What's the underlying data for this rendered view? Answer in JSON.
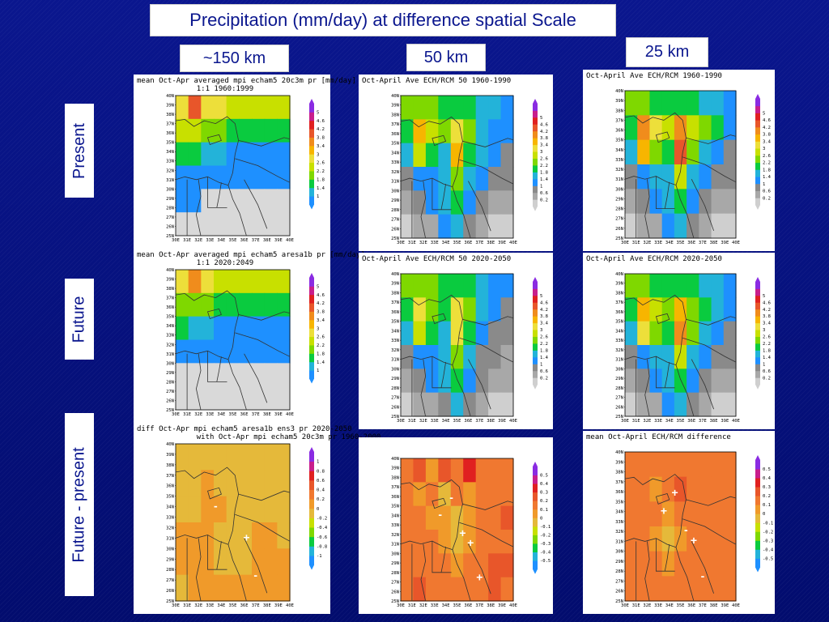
{
  "slide": {
    "title": "Precipitation (mm/day) at difference spatial Scale",
    "columns": [
      "~150 km",
      "50 km",
      "25 km"
    ],
    "rows": [
      "Present",
      "Future",
      "Future - present"
    ]
  },
  "colors": {
    "background": "#0a168e",
    "label_text": "#0a168e"
  },
  "colorbars": {
    "precip_gcm": {
      "ticks": [
        "1",
        "1.4",
        "1.8",
        "2.2",
        "2.6",
        "3",
        "3.4",
        "3.8",
        "4.2",
        "4.6",
        "5"
      ],
      "colors": [
        "#1e90ff",
        "#23b3d9",
        "#0acb3f",
        "#7fd800",
        "#c8e000",
        "#eddf3a",
        "#f7b500",
        "#f08c1c",
        "#e8562a",
        "#e02020",
        "#c81e8c",
        "#8a2be2"
      ]
    },
    "precip_rcm": {
      "ticks": [
        "0.2",
        "0.6",
        "1",
        "1.4",
        "1.8",
        "2.2",
        "2.6",
        "3",
        "3.4",
        "3.8",
        "4.2",
        "4.6",
        "5"
      ],
      "colors": [
        "#cfcfcf",
        "#a8a8a8",
        "#8a8a8a",
        "#1e90ff",
        "#23b3d9",
        "#0acb3f",
        "#7fd800",
        "#c8e000",
        "#eddf3a",
        "#f7b500",
        "#f08c1c",
        "#e8562a",
        "#e02020",
        "#c81e8c",
        "#8a2be2"
      ]
    },
    "diff_gcm": {
      "ticks": [
        "-1",
        "-0.8",
        "-0.6",
        "-0.4",
        "-0.2",
        "0",
        "0.2",
        "0.4",
        "0.6",
        "0.8",
        "1"
      ],
      "colors": [
        "#1e90ff",
        "#23b3d9",
        "#0acb3f",
        "#7fd800",
        "#c8e000",
        "#e5b93a",
        "#f09a2a",
        "#f07830",
        "#e8562a",
        "#e02020",
        "#c81e8c",
        "#8a2be2"
      ]
    },
    "diff_rcm": {
      "ticks": [
        "-0.5",
        "-0.4",
        "-0.3",
        "-0.2",
        "-0.1",
        "0",
        "0.1",
        "0.2",
        "0.3",
        "0.4",
        "0.5"
      ],
      "colors": [
        "#1e90ff",
        "#23b3d9",
        "#0acb3f",
        "#7fd800",
        "#c8e000",
        "#e5b93a",
        "#f09a2a",
        "#f07830",
        "#e8562a",
        "#e02020",
        "#c81e8c",
        "#8a2be2"
      ]
    }
  },
  "axes": {
    "lat_ticks": [
      "40N",
      "39N",
      "38N",
      "37N",
      "36N",
      "35N",
      "34N",
      "33N",
      "32N",
      "31N",
      "30N",
      "29N",
      "28N",
      "27N",
      "26N",
      "25N"
    ],
    "lon_ticks": [
      "30E",
      "31E",
      "32E",
      "33E",
      "34E",
      "35E",
      "36E",
      "37E",
      "38E",
      "39E",
      "40E"
    ]
  },
  "chart_data": [
    {
      "type": "heatmap",
      "id": "gcm-present",
      "title_line1": "mean Oct-Apr averaged mpi echam5 20c3m pr [mm/day]",
      "title_line2": "1:1 1960:1999",
      "colorbar": "precip_gcm",
      "grid": [
        [
          5,
          8,
          5,
          5,
          4,
          4,
          4,
          4,
          4
        ],
        [
          4,
          4,
          3,
          3,
          2,
          2,
          2,
          2,
          2
        ],
        [
          2,
          2,
          1,
          1,
          0,
          0,
          0,
          0,
          0
        ],
        [
          0,
          0,
          0,
          0,
          0,
          0,
          0,
          0,
          0
        ],
        [
          0,
          0,
          -1,
          -1,
          -1,
          -1,
          -1,
          -1,
          -1
        ],
        [
          -1,
          -1,
          -1,
          -1,
          -1,
          -1,
          -1,
          -1,
          -1
        ]
      ]
    },
    {
      "type": "heatmap",
      "id": "rcm50-present",
      "title_line1": "Oct-April Ave ECH/RCM 50 1960-1990",
      "title_line2": "",
      "colorbar": "precip_rcm",
      "grid": [
        [
          6,
          6,
          6,
          5,
          5,
          5,
          4,
          4,
          3
        ],
        [
          5,
          9,
          7,
          6,
          8,
          6,
          4,
          3,
          3
        ],
        [
          4,
          7,
          5,
          4,
          9,
          5,
          4,
          3,
          2
        ],
        [
          2,
          3,
          3,
          4,
          6,
          4,
          3,
          2,
          2
        ],
        [
          1,
          2,
          3,
          4,
          5,
          3,
          2,
          1,
          1
        ],
        [
          0,
          1,
          1,
          3,
          4,
          2,
          1,
          0,
          0
        ]
      ]
    },
    {
      "type": "heatmap",
      "id": "rcm25-present",
      "title_line1": "Oct-April Ave ECH/RCM 1960-1990",
      "title_line2": "",
      "colorbar": "precip_rcm",
      "grid": [
        [
          6,
          6,
          5,
          5,
          5,
          5,
          4,
          4,
          3
        ],
        [
          5,
          10,
          8,
          7,
          10,
          7,
          6,
          5,
          3
        ],
        [
          4,
          9,
          6,
          5,
          11,
          6,
          4,
          3,
          2
        ],
        [
          2,
          3,
          4,
          4,
          7,
          4,
          3,
          2,
          2
        ],
        [
          1,
          2,
          3,
          4,
          5,
          3,
          2,
          1,
          1
        ],
        [
          0,
          1,
          1,
          3,
          4,
          2,
          1,
          0,
          0
        ]
      ]
    },
    {
      "type": "heatmap",
      "id": "gcm-future",
      "title_line1": "mean Oct-Apr averaged mpi echam5 aresa1b pr [mm/day]",
      "title_line2": "1:1 2020:2049",
      "colorbar": "precip_gcm",
      "grid": [
        [
          5,
          7,
          5,
          4,
          4,
          4,
          4,
          4,
          4
        ],
        [
          3,
          3,
          3,
          2,
          2,
          2,
          2,
          2,
          2
        ],
        [
          2,
          1,
          1,
          0,
          0,
          0,
          0,
          0,
          0
        ],
        [
          0,
          0,
          0,
          0,
          0,
          0,
          0,
          0,
          0
        ],
        [
          -1,
          -1,
          -1,
          -1,
          -1,
          -1,
          -1,
          -1,
          -1
        ],
        [
          -1,
          -1,
          -1,
          -1,
          -1,
          -1,
          -1,
          -1,
          -1
        ]
      ]
    },
    {
      "type": "heatmap",
      "id": "rcm50-future",
      "title_line1": "Oct-April Ave ECH/RCM 50 2020-2050",
      "title_line2": "",
      "colorbar": "precip_rcm",
      "grid": [
        [
          6,
          6,
          6,
          5,
          5,
          5,
          4,
          3,
          3
        ],
        [
          5,
          8,
          6,
          5,
          8,
          6,
          4,
          3,
          2
        ],
        [
          4,
          7,
          5,
          4,
          8,
          5,
          3,
          2,
          2
        ],
        [
          2,
          3,
          3,
          4,
          6,
          4,
          2,
          2,
          1
        ],
        [
          1,
          2,
          3,
          4,
          5,
          3,
          2,
          1,
          1
        ],
        [
          0,
          1,
          1,
          2,
          4,
          2,
          1,
          0,
          0
        ]
      ]
    },
    {
      "type": "heatmap",
      "id": "rcm25-future",
      "title_line1": "Oct-April Ave ECH/RCM 2020-2050",
      "title_line2": "",
      "colorbar": "precip_rcm",
      "grid": [
        [
          6,
          6,
          5,
          5,
          5,
          5,
          4,
          4,
          3
        ],
        [
          5,
          9,
          7,
          6,
          9,
          6,
          5,
          4,
          3
        ],
        [
          4,
          8,
          6,
          5,
          10,
          6,
          4,
          3,
          2
        ],
        [
          2,
          3,
          4,
          4,
          7,
          4,
          3,
          2,
          2
        ],
        [
          1,
          2,
          3,
          4,
          5,
          3,
          2,
          1,
          1
        ],
        [
          0,
          1,
          1,
          3,
          4,
          2,
          1,
          0,
          0
        ]
      ]
    },
    {
      "type": "heatmap",
      "id": "gcm-diff",
      "title_line1": "diff Oct-Apr mpi echam5 aresa1b ens3 pr 2020-2050",
      "title_line2": "with Oct-Apr mpi echam5 20c3m pr 1960-2000",
      "colorbar": "diff_gcm",
      "grid": [
        [
          5,
          5,
          5,
          5,
          5,
          5,
          5,
          5,
          5
        ],
        [
          5,
          5,
          6,
          5,
          5,
          5,
          5,
          5,
          5
        ],
        [
          5,
          5,
          6,
          6,
          5,
          5,
          5,
          5,
          5
        ],
        [
          6,
          6,
          6,
          5,
          5,
          5,
          6,
          6,
          5
        ],
        [
          6,
          6,
          6,
          5,
          5,
          5,
          6,
          6,
          6
        ],
        [
          5,
          6,
          6,
          6,
          6,
          6,
          6,
          6,
          6
        ]
      ],
      "marks": [
        "-",
        "+",
        "-"
      ]
    },
    {
      "type": "heatmap",
      "id": "rcm50-diff",
      "title_line1": "",
      "title_line2": "",
      "colorbar": "diff_rcm",
      "grid": [
        [
          7,
          8,
          6,
          8,
          7,
          9,
          7,
          7,
          7
        ],
        [
          7,
          6,
          7,
          5,
          7,
          6,
          7,
          7,
          7
        ],
        [
          7,
          7,
          6,
          6,
          5,
          6,
          7,
          7,
          8
        ],
        [
          7,
          7,
          7,
          6,
          5,
          6,
          7,
          7,
          7
        ],
        [
          7,
          7,
          7,
          7,
          6,
          7,
          7,
          8,
          8
        ],
        [
          7,
          8,
          7,
          7,
          7,
          7,
          7,
          8,
          7
        ]
      ],
      "marks": [
        "-",
        "+",
        "+",
        "-",
        "+"
      ]
    },
    {
      "type": "heatmap",
      "id": "rcm25-diff",
      "title_line1": "mean Oct-April ECH/RCM difference",
      "title_line2": "",
      "colorbar": "diff_rcm",
      "grid": [
        [
          7,
          7,
          7,
          7,
          7,
          7,
          7,
          7,
          7
        ],
        [
          7,
          7,
          6,
          7,
          8,
          7,
          7,
          7,
          7
        ],
        [
          7,
          7,
          7,
          6,
          7,
          7,
          7,
          7,
          7
        ],
        [
          7,
          7,
          6,
          5,
          6,
          7,
          7,
          7,
          7
        ],
        [
          7,
          7,
          7,
          6,
          7,
          7,
          7,
          7,
          7
        ],
        [
          7,
          7,
          7,
          7,
          7,
          7,
          7,
          7,
          7
        ]
      ],
      "marks": [
        "+",
        "+",
        "-",
        "+",
        "-"
      ]
    }
  ]
}
